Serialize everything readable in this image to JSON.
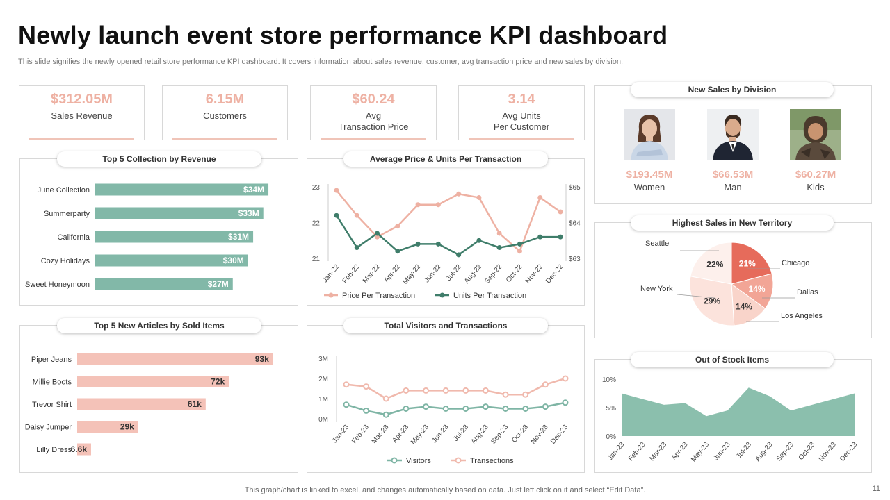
{
  "header": {
    "title": "Newly launch event store performance KPI dashboard",
    "subtitle": "This slide signifies the newly opened retail store performance KPI dashboard. It covers information about sales revenue, customer, avg transaction price and new sales by division."
  },
  "kpis": [
    {
      "value": "$312.05M",
      "label1": "Sales Revenue",
      "label2": ""
    },
    {
      "value": "6.15M",
      "label1": "Customers",
      "label2": ""
    },
    {
      "value": "$60.24",
      "label1": "Avg",
      "label2": "Transaction Price"
    },
    {
      "value": "3.14",
      "label1": "Avg Units",
      "label2": "Per Customer"
    }
  ],
  "division": {
    "title": "New Sales by Division",
    "items": [
      {
        "value": "$193.45M",
        "label": "Women"
      },
      {
        "value": "$66.53M",
        "label": "Man"
      },
      {
        "value": "$60.27M",
        "label": "Kids"
      }
    ]
  },
  "panels": {
    "top5_title": "Top 5 Collection by Revenue",
    "avg_title": "Average Price & Units Per Transaction",
    "territory_title": "Highest Sales in New Territory",
    "articles_title": "Top 5 New Articles by Sold Items",
    "visitors_title": "Total Visitors and Transactions",
    "stock_title": "Out of Stock Items"
  },
  "chart_data": [
    {
      "id": "top5",
      "type": "bar",
      "orientation": "horizontal",
      "title": "Top 5 Collection by Revenue",
      "categories": [
        "June Collection",
        "Summerparty",
        "California",
        "Cozy Holidays",
        "Sweet Honeymoon"
      ],
      "values": [
        34,
        33,
        31,
        30,
        27
      ],
      "value_labels": [
        "$34M",
        "$33M",
        "$31M",
        "$30M",
        "$27M"
      ],
      "xlim": [
        0,
        40
      ],
      "color": "#82b8a8"
    },
    {
      "id": "avgprice",
      "type": "line",
      "title": "Average Price & Units Per Transaction",
      "categories": [
        "Jan-22",
        "Feb-22",
        "Mar-22",
        "Apr-22",
        "May-22",
        "Jun-22",
        "Jul-22",
        "Aug-22",
        "Sep-22",
        "Oct-22",
        "Nov-22",
        "Dec-22"
      ],
      "series": [
        {
          "name": "Price Per Transaction",
          "axis": "right",
          "color": "#eeb1a3",
          "values": [
            64.9,
            64.2,
            63.6,
            63.9,
            64.5,
            64.5,
            64.8,
            64.7,
            63.7,
            63.2,
            64.7,
            64.3
          ]
        },
        {
          "name": "Units Per Transaction",
          "axis": "left",
          "color": "#3f7d6a",
          "values": [
            22.2,
            21.3,
            21.7,
            21.2,
            21.4,
            21.4,
            21.1,
            21.5,
            21.3,
            21.4,
            21.6,
            21.6
          ]
        }
      ],
      "y_left": {
        "ticks": [
          "21",
          "22",
          "23"
        ],
        "lim": [
          21,
          23
        ]
      },
      "y_right": {
        "ticks": [
          "$63",
          "$64",
          "$65"
        ],
        "lim": [
          63,
          65
        ]
      }
    },
    {
      "id": "territory",
      "type": "pie",
      "title": "Highest Sales in New Territory",
      "slices": [
        {
          "label": "Chicago",
          "value": 21,
          "pct": "21%",
          "color": "#e66b5b"
        },
        {
          "label": "Dallas",
          "value": 14,
          "pct": "14%",
          "color": "#f2a596"
        },
        {
          "label": "Los Angeles",
          "value": 14,
          "pct": "14%",
          "color": "#f9d4ca"
        },
        {
          "label": "New York",
          "value": 29,
          "pct": "29%",
          "color": "#fce3dc"
        },
        {
          "label": "Seattle",
          "value": 22,
          "pct": "22%",
          "color": "#fdf0ec"
        }
      ]
    },
    {
      "id": "articles",
      "type": "bar",
      "orientation": "horizontal",
      "title": "Top 5 New Articles by Sold Items",
      "categories": [
        "Piper Jeans",
        "Millie Boots",
        "Trevor Shirt",
        "Daisy Jumper",
        "Lilly Dress"
      ],
      "values": [
        93,
        72,
        61,
        29,
        6.6
      ],
      "value_labels": [
        "93k",
        "72k",
        "61k",
        "29k",
        "6.6k"
      ],
      "xlim": [
        0,
        100
      ],
      "color": "#f4c2b8"
    },
    {
      "id": "visitors",
      "type": "line",
      "title": "Total Visitors and Transactions",
      "categories": [
        "Jan-23",
        "Feb-23",
        "Mar-23",
        "Apr-23",
        "May-23",
        "Jun-23",
        "Jul-23",
        "Aug-23",
        "Sep-23",
        "Oct-23",
        "Nov-23",
        "Dec-23"
      ],
      "series": [
        {
          "name": "Visitors",
          "color": "#7fb5a5",
          "values": [
            0.7,
            0.4,
            0.2,
            0.5,
            0.6,
            0.5,
            0.5,
            0.6,
            0.5,
            0.5,
            0.6,
            0.8
          ]
        },
        {
          "name": "Transections",
          "color": "#f0b9ad",
          "values": [
            1.7,
            1.6,
            1.0,
            1.4,
            1.4,
            1.4,
            1.4,
            1.4,
            1.2,
            1.2,
            1.7,
            2.0
          ]
        }
      ],
      "y_ticks": [
        "0M",
        "1M",
        "2M",
        "3M"
      ],
      "ylim": [
        0,
        3
      ]
    },
    {
      "id": "stock",
      "type": "area",
      "title": "Out of Stock Items",
      "categories": [
        "Jan-23",
        "Feb-23",
        "Mar-23",
        "Apr-23",
        "May-23",
        "Jun-23",
        "Jul-23",
        "Aug-23",
        "Sep-23",
        "Oct-23",
        "Nov-23",
        "Dec-23"
      ],
      "values": [
        7.5,
        6.5,
        5.5,
        5.8,
        3.5,
        4.5,
        8.5,
        7.0,
        4.5,
        5.5,
        6.5,
        7.5
      ],
      "y_ticks": [
        "0%",
        "5%",
        "10%"
      ],
      "ylim": [
        0,
        10
      ],
      "color": "#8bbfad"
    }
  ],
  "footer": {
    "note": "This graph/chart is linked to excel,  and changes automatically based on data. Just left click on it and select “Edit Data”.",
    "page": "11"
  }
}
